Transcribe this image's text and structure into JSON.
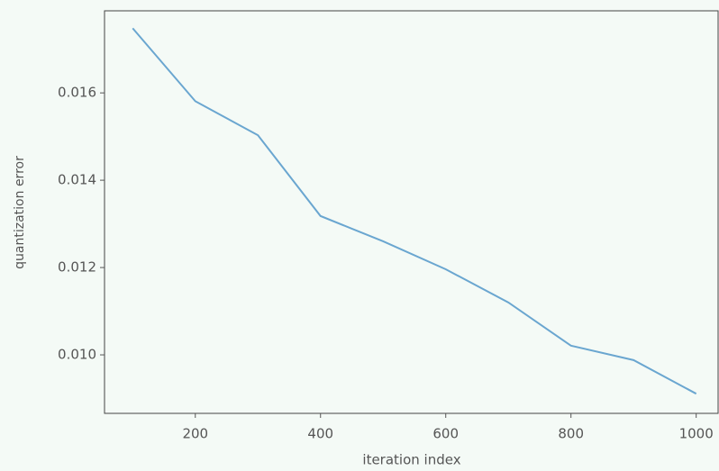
{
  "chart_data": {
    "type": "line",
    "x_label": "iteration index",
    "y_label": "quantization error",
    "x": [
      100,
      200,
      300,
      400,
      500,
      600,
      700,
      800,
      900,
      1000
    ],
    "series": [
      {
        "name": "quantization error",
        "color": "#6aa6d0",
        "values": [
          0.01748,
          0.01581,
          0.01503,
          0.01318,
          0.0126,
          0.01196,
          0.0112,
          0.01021,
          0.00988,
          0.00911
        ]
      }
    ],
    "xlim": [
      55,
      1035
    ],
    "ylim": [
      0.00866,
      0.01788
    ],
    "xticks": [
      200,
      400,
      600,
      800,
      1000
    ],
    "yticks": [
      {
        "value": 0.01,
        "label": "0.010"
      },
      0.012,
      0.014,
      0.016
    ],
    "grid": false
  }
}
